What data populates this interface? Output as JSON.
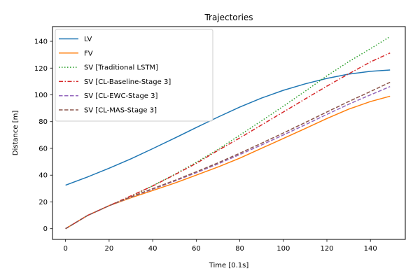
{
  "chart_data": {
    "type": "line",
    "title": "Trajectories",
    "xlabel": "Time [0.1s]",
    "ylabel": "Distance [m]",
    "xlim": [
      -6,
      156
    ],
    "ylim": [
      -8,
      151
    ],
    "xticks": [
      0,
      20,
      40,
      60,
      80,
      100,
      120,
      140
    ],
    "yticks": [
      0,
      20,
      40,
      60,
      80,
      100,
      120,
      140
    ],
    "grid": false,
    "legend_position": "top-left",
    "series": [
      {
        "name": "LV",
        "color": "#1f77b4",
        "dash": "solid",
        "x": [
          0,
          10,
          20,
          30,
          40,
          50,
          60,
          70,
          80,
          90,
          100,
          110,
          120,
          130,
          140,
          149
        ],
        "y": [
          32.5,
          38.6,
          45.2,
          52.2,
          59.8,
          67.6,
          75.6,
          83.4,
          90.9,
          97.6,
          103.4,
          108.2,
          112.3,
          115.5,
          117.6,
          118.6
        ]
      },
      {
        "name": "FV",
        "color": "#ff7f0e",
        "dash": "solid",
        "x": [
          0,
          10,
          20,
          30,
          40,
          50,
          60,
          70,
          80,
          90,
          100,
          110,
          120,
          130,
          140,
          149
        ],
        "y": [
          0,
          9.8,
          17.2,
          23.1,
          28.5,
          34.0,
          40.0,
          46.1,
          52.7,
          60.1,
          67.4,
          74.8,
          82.3,
          89.3,
          95.0,
          99.0
        ]
      },
      {
        "name": "SV [Traditional LSTM]",
        "color": "#2ca02c",
        "dash": "dotted",
        "x": [
          0,
          10,
          20,
          30,
          40,
          50,
          60,
          70,
          80,
          90,
          100,
          110,
          120,
          130,
          140,
          149
        ],
        "y": [
          0,
          9.8,
          17.2,
          24.2,
          32.1,
          40.5,
          49.5,
          59.2,
          69.9,
          80.6,
          91.5,
          102.7,
          114.2,
          124.8,
          134.5,
          143.5
        ]
      },
      {
        "name": "SV [CL-Baseline-Stage 3]",
        "color": "#d62728",
        "dash": "dashdot",
        "x": [
          0,
          10,
          20,
          30,
          40,
          50,
          60,
          70,
          80,
          90,
          100,
          110,
          120,
          130,
          140,
          149
        ],
        "y": [
          0,
          9.8,
          17.2,
          24.5,
          31.9,
          40.2,
          48.8,
          58.5,
          67.8,
          77.5,
          87.2,
          96.9,
          106.5,
          115.7,
          124.6,
          131.3
        ]
      },
      {
        "name": "SV [CL-EWC-Stage 3]",
        "color": "#9467bd",
        "dash": "dashed",
        "x": [
          0,
          10,
          20,
          30,
          40,
          50,
          60,
          70,
          80,
          90,
          100,
          110,
          120,
          130,
          140,
          149
        ],
        "y": [
          0,
          9.8,
          17.2,
          23.6,
          29.5,
          35.5,
          41.8,
          48.4,
          55.4,
          62.6,
          70.0,
          77.6,
          85.4,
          93.0,
          100.0,
          106.2
        ]
      },
      {
        "name": "SV [CL-MAS-Stage 3]",
        "color": "#8c564b",
        "dash": "dashed",
        "x": [
          0,
          10,
          20,
          30,
          40,
          50,
          60,
          70,
          80,
          90,
          100,
          110,
          120,
          130,
          140,
          149
        ],
        "y": [
          0,
          9.8,
          17.2,
          23.8,
          29.9,
          36.0,
          42.5,
          49.2,
          56.4,
          63.9,
          71.5,
          79.3,
          87.2,
          95.0,
          102.5,
          109.4
        ]
      }
    ]
  }
}
